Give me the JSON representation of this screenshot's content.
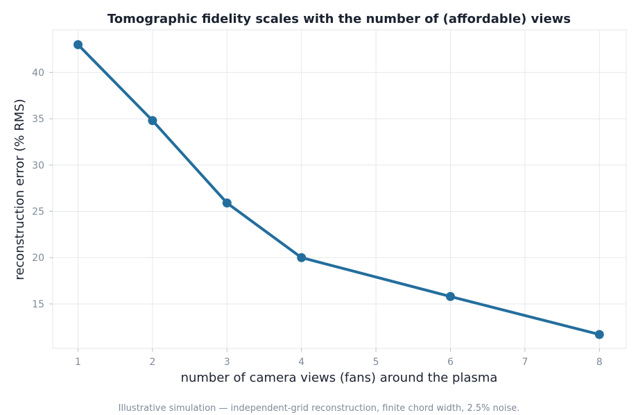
{
  "chart_data": {
    "type": "line",
    "title": "Tomographic fidelity scales with the number of (affordable) views",
    "xlabel": "number of camera views (fans) around the plasma",
    "ylabel": "reconstruction error (% RMS)",
    "x": [
      1,
      2,
      3,
      4,
      6,
      8
    ],
    "series": [
      {
        "values": [
          43.0,
          34.8,
          25.9,
          20.0,
          15.8,
          11.7
        ]
      }
    ],
    "xlim": [
      0.66,
      8.36
    ],
    "ylim": [
      10.2,
      44.6
    ],
    "xticks": [
      "1",
      "2",
      "3",
      "4",
      "5",
      "6",
      "7",
      "8"
    ],
    "yticks": [
      "15",
      "20",
      "25",
      "30",
      "35",
      "40"
    ],
    "grid": true,
    "line_color": "#236e9d",
    "caption": "Illustrative simulation — independent-grid reconstruction, finite chord width, 2.5% noise."
  }
}
